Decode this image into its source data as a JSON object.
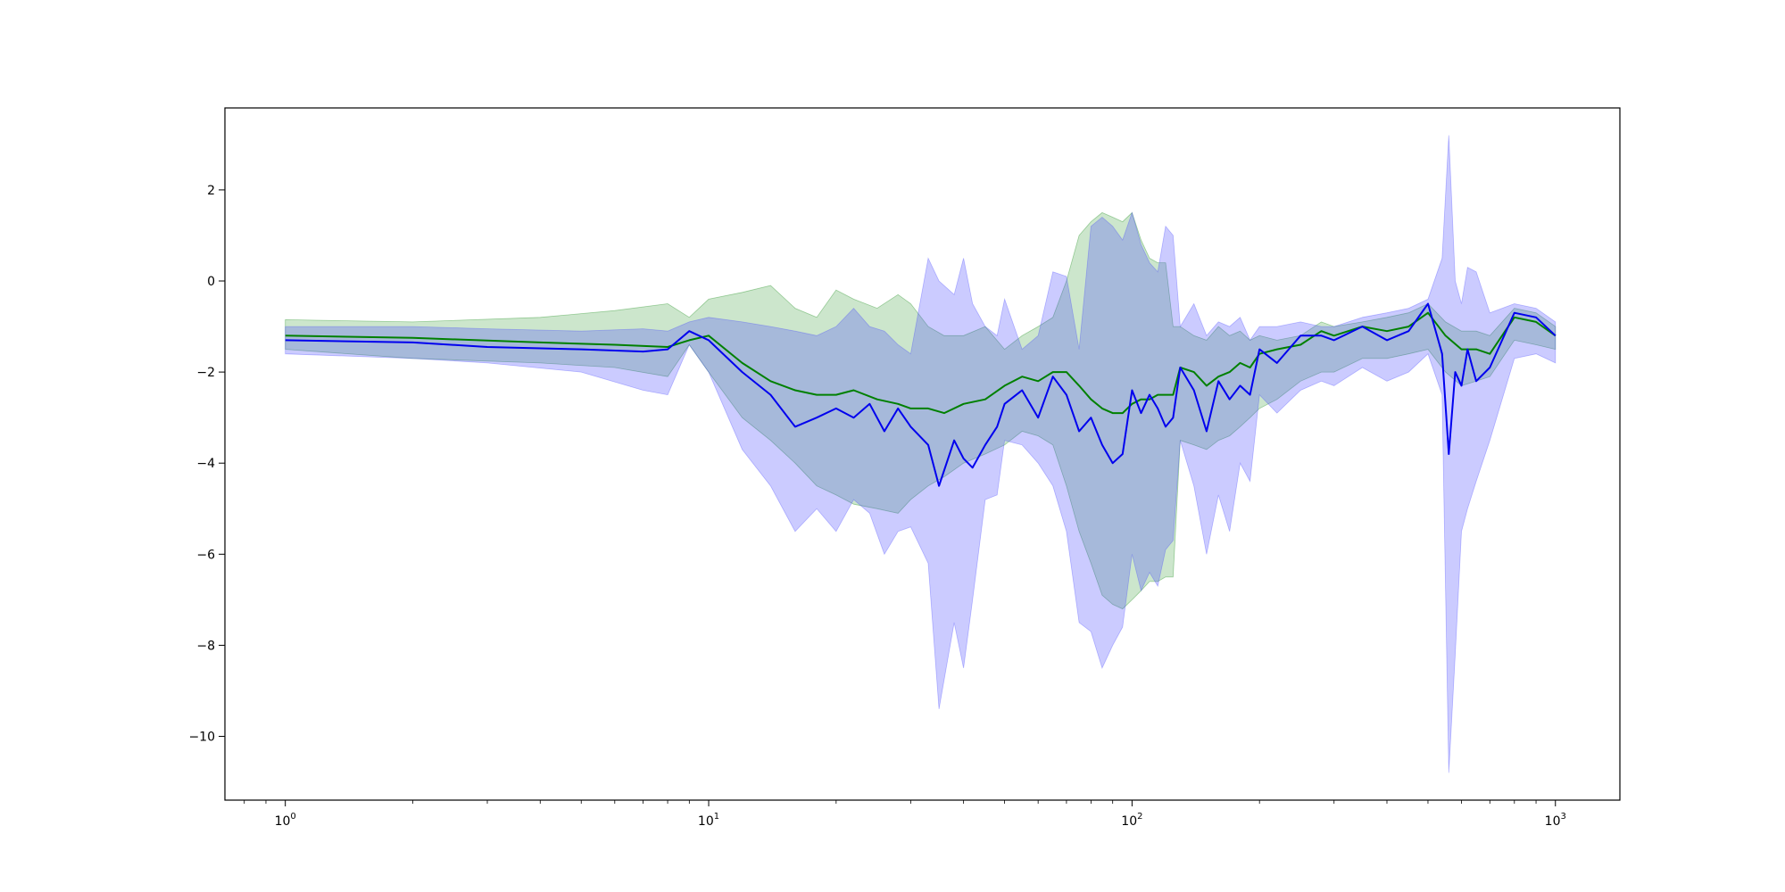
{
  "chart_data": {
    "type": "line",
    "title": "",
    "xlabel": "",
    "ylabel": "",
    "xscale": "log",
    "xlim": [
      0.72,
      1420
    ],
    "ylim": [
      -11.4,
      3.8
    ],
    "grid": false,
    "legend": "none",
    "x_ticks": [
      {
        "value": 1,
        "base": "10",
        "exp": "0"
      },
      {
        "value": 10,
        "base": "10",
        "exp": "1"
      },
      {
        "value": 100,
        "base": "10",
        "exp": "2"
      },
      {
        "value": 1000,
        "base": "10",
        "exp": "3"
      }
    ],
    "y_ticks": [
      {
        "value": 2,
        "label": "2"
      },
      {
        "value": 0,
        "label": "0"
      },
      {
        "value": -2,
        "label": "−2"
      },
      {
        "value": -4,
        "label": "−4"
      },
      {
        "value": -6,
        "label": "−6"
      },
      {
        "value": -8,
        "label": "−8"
      },
      {
        "value": -10,
        "label": "−10"
      }
    ],
    "series": [
      {
        "color": "#008000",
        "band_color": "#008000",
        "band_opacity": 0.2,
        "x": [
          1,
          2,
          4,
          6,
          8,
          9,
          10,
          12,
          14,
          16,
          18,
          20,
          22,
          25,
          28,
          30,
          33,
          36,
          40,
          45,
          50,
          55,
          60,
          65,
          70,
          75,
          80,
          85,
          90,
          95,
          100,
          105,
          110,
          115,
          120,
          125,
          130,
          140,
          150,
          160,
          170,
          180,
          190,
          200,
          220,
          250,
          280,
          300,
          350,
          400,
          450,
          500,
          550,
          600,
          650,
          700,
          800,
          900,
          1000
        ],
        "y": [
          -1.2,
          -1.25,
          -1.35,
          -1.4,
          -1.45,
          -1.3,
          -1.2,
          -1.8,
          -2.2,
          -2.4,
          -2.5,
          -2.5,
          -2.4,
          -2.6,
          -2.7,
          -2.8,
          -2.8,
          -2.9,
          -2.7,
          -2.6,
          -2.3,
          -2.1,
          -2.2,
          -2.0,
          -2.0,
          -2.3,
          -2.6,
          -2.8,
          -2.9,
          -2.9,
          -2.7,
          -2.6,
          -2.6,
          -2.5,
          -2.5,
          -2.5,
          -1.9,
          -2.0,
          -2.3,
          -2.1,
          -2.0,
          -1.8,
          -1.9,
          -1.6,
          -1.5,
          -1.4,
          -1.1,
          -1.2,
          -1.0,
          -1.1,
          -1.0,
          -0.7,
          -1.2,
          -1.5,
          -1.5,
          -1.6,
          -0.8,
          -0.9,
          -1.2
        ],
        "upper": [
          -0.85,
          -0.9,
          -0.8,
          -0.65,
          -0.5,
          -0.8,
          -0.4,
          -0.25,
          -0.1,
          -0.6,
          -0.8,
          -0.2,
          -0.4,
          -0.6,
          -0.3,
          -0.5,
          -1.0,
          -1.2,
          -1.2,
          -1.0,
          -1.5,
          -1.2,
          -1.0,
          -0.8,
          0.0,
          1.0,
          1.3,
          1.5,
          1.4,
          1.3,
          1.5,
          0.9,
          0.5,
          0.4,
          0.4,
          -1.0,
          -1.0,
          -1.2,
          -1.3,
          -1.0,
          -1.2,
          -1.1,
          -1.3,
          -1.2,
          -1.3,
          -1.2,
          -0.9,
          -1.0,
          -0.9,
          -0.8,
          -0.7,
          -0.5,
          -0.9,
          -1.1,
          -1.1,
          -1.2,
          -0.6,
          -0.7,
          -1.0
        ],
        "lower": [
          -1.5,
          -1.7,
          -1.8,
          -1.9,
          -2.1,
          -1.4,
          -2.0,
          -3.0,
          -3.5,
          -4.0,
          -4.5,
          -4.7,
          -4.9,
          -5.0,
          -5.1,
          -4.8,
          -4.5,
          -4.3,
          -4.0,
          -3.8,
          -3.6,
          -3.3,
          -3.4,
          -3.6,
          -4.5,
          -5.5,
          -6.2,
          -6.9,
          -7.1,
          -7.2,
          -7.0,
          -6.8,
          -6.6,
          -6.6,
          -6.5,
          -6.5,
          -3.5,
          -3.6,
          -3.7,
          -3.5,
          -3.4,
          -3.2,
          -3.0,
          -2.8,
          -2.6,
          -2.2,
          -2.0,
          -2.0,
          -1.7,
          -1.7,
          -1.6,
          -1.5,
          -2.0,
          -2.3,
          -2.2,
          -2.1,
          -1.3,
          -1.4,
          -1.5
        ]
      },
      {
        "color": "#0000ee",
        "band_color": "#4444ff",
        "band_opacity": 0.28,
        "x": [
          1,
          2,
          3,
          5,
          7,
          8,
          9,
          10,
          12,
          14,
          16,
          18,
          20,
          22,
          24,
          26,
          28,
          30,
          33,
          35,
          38,
          40,
          42,
          45,
          48,
          50,
          55,
          60,
          65,
          70,
          75,
          80,
          85,
          90,
          95,
          100,
          105,
          110,
          115,
          120,
          125,
          130,
          140,
          150,
          160,
          170,
          180,
          190,
          200,
          220,
          250,
          280,
          300,
          350,
          400,
          450,
          500,
          540,
          560,
          580,
          600,
          620,
          650,
          700,
          800,
          900,
          1000
        ],
        "y": [
          -1.3,
          -1.35,
          -1.45,
          -1.5,
          -1.55,
          -1.5,
          -1.1,
          -1.3,
          -2.0,
          -2.5,
          -3.2,
          -3.0,
          -2.8,
          -3.0,
          -2.7,
          -3.3,
          -2.8,
          -3.2,
          -3.6,
          -4.5,
          -3.5,
          -3.9,
          -4.1,
          -3.6,
          -3.2,
          -2.7,
          -2.4,
          -3.0,
          -2.1,
          -2.5,
          -3.3,
          -3.0,
          -3.6,
          -4.0,
          -3.8,
          -2.4,
          -2.9,
          -2.5,
          -2.8,
          -3.2,
          -3.0,
          -1.9,
          -2.4,
          -3.3,
          -2.2,
          -2.6,
          -2.3,
          -2.5,
          -1.5,
          -1.8,
          -1.2,
          -1.2,
          -1.3,
          -1.0,
          -1.3,
          -1.1,
          -0.5,
          -1.6,
          -3.8,
          -2.0,
          -2.3,
          -1.5,
          -2.2,
          -1.9,
          -0.7,
          -0.8,
          -1.2
        ],
        "upper": [
          -1.0,
          -1.0,
          -1.05,
          -1.1,
          -1.05,
          -1.1,
          -0.9,
          -0.8,
          -0.9,
          -1.0,
          -1.1,
          -1.2,
          -1.0,
          -0.6,
          -1.0,
          -1.1,
          -1.4,
          -1.6,
          0.5,
          0.0,
          -0.3,
          0.5,
          -0.5,
          -1.0,
          -1.2,
          -0.4,
          -1.5,
          -1.2,
          0.2,
          0.1,
          -1.5,
          1.2,
          1.4,
          1.2,
          0.9,
          1.5,
          0.8,
          0.4,
          0.2,
          1.2,
          1.0,
          -1.0,
          -0.5,
          -1.2,
          -0.9,
          -1.0,
          -0.8,
          -1.3,
          -1.0,
          -1.0,
          -0.9,
          -1.0,
          -1.0,
          -0.8,
          -0.7,
          -0.6,
          -0.4,
          0.5,
          3.2,
          0.0,
          -0.5,
          0.3,
          0.2,
          -0.7,
          -0.5,
          -0.6,
          -0.9
        ],
        "lower": [
          -1.6,
          -1.7,
          -1.8,
          -2.0,
          -2.4,
          -2.5,
          -1.4,
          -2.0,
          -3.7,
          -4.5,
          -5.5,
          -5.0,
          -5.5,
          -4.8,
          -5.1,
          -6.0,
          -5.5,
          -5.4,
          -6.2,
          -9.4,
          -7.5,
          -8.5,
          -7.0,
          -4.8,
          -4.7,
          -3.5,
          -3.6,
          -4.0,
          -4.5,
          -5.5,
          -7.5,
          -7.7,
          -8.5,
          -8.0,
          -7.6,
          -6.0,
          -6.8,
          -6.4,
          -6.7,
          -5.9,
          -5.7,
          -3.5,
          -4.5,
          -6.0,
          -4.7,
          -5.5,
          -4.0,
          -4.4,
          -2.5,
          -2.9,
          -2.4,
          -2.2,
          -2.3,
          -1.9,
          -2.2,
          -2.0,
          -1.6,
          -2.5,
          -10.8,
          -8.2,
          -5.5,
          -5.0,
          -4.4,
          -3.5,
          -1.7,
          -1.6,
          -1.8
        ]
      }
    ]
  }
}
